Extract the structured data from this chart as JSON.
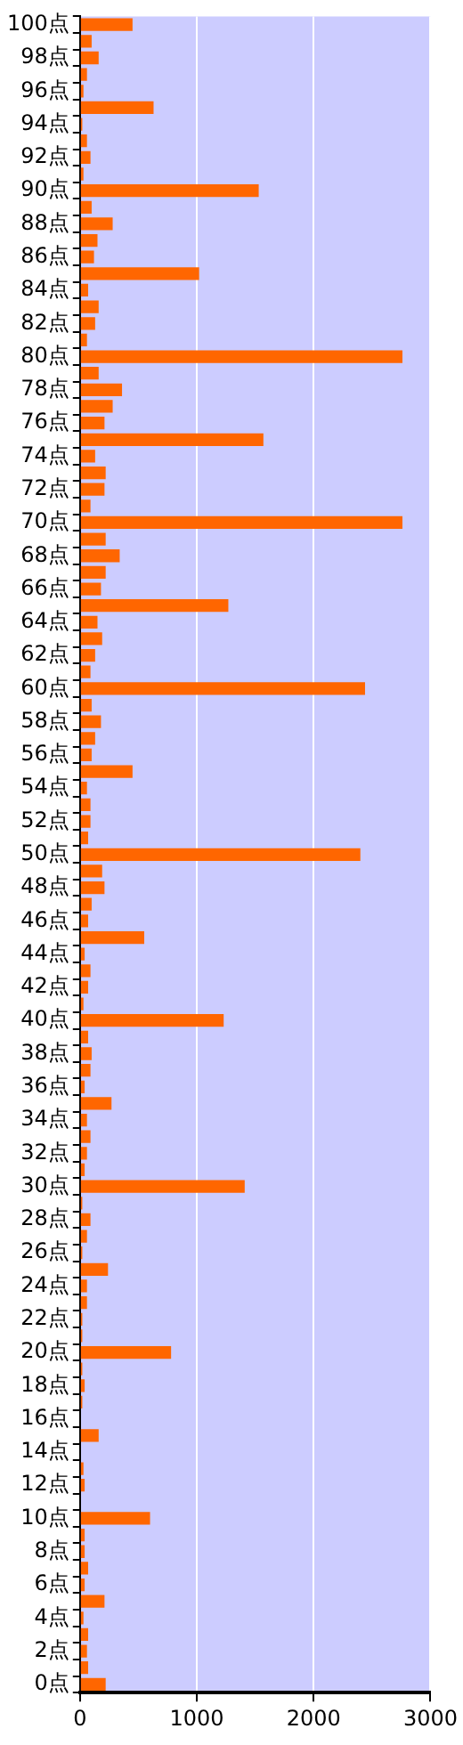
{
  "chart_data": {
    "type": "bar",
    "orientation": "horizontal",
    "categories": [
      "100点",
      null,
      "98点",
      null,
      "96点",
      null,
      "94点",
      null,
      "92点",
      null,
      "90点",
      null,
      "88点",
      null,
      "86点",
      null,
      "84点",
      null,
      "82点",
      null,
      "80点",
      null,
      "78点",
      null,
      "76点",
      null,
      "74点",
      null,
      "72点",
      null,
      "70点",
      null,
      "68点",
      null,
      "66点",
      null,
      "64点",
      null,
      "62点",
      null,
      "60点",
      null,
      "58点",
      null,
      "56点",
      null,
      "54点",
      null,
      "52点",
      null,
      "50点",
      null,
      "48点",
      null,
      "46点",
      null,
      "44点",
      null,
      "42点",
      null,
      "40点",
      null,
      "38点",
      null,
      "36点",
      null,
      "34点",
      null,
      "32点",
      null,
      "30点",
      null,
      "28点",
      null,
      "26点",
      null,
      "24点",
      null,
      "22点",
      null,
      "20点",
      null,
      "18点",
      null,
      "16点",
      null,
      "14点",
      null,
      "12点",
      null,
      "10点",
      null,
      "8点",
      null,
      "6点",
      null,
      "4点",
      null,
      "2点",
      null,
      "0点"
    ],
    "values": [
      450,
      100,
      160,
      60,
      30,
      630,
      20,
      60,
      90,
      30,
      1530,
      100,
      280,
      150,
      120,
      1020,
      70,
      160,
      130,
      60,
      2760,
      160,
      360,
      280,
      210,
      1570,
      130,
      220,
      210,
      90,
      2760,
      220,
      340,
      220,
      180,
      1270,
      150,
      190,
      130,
      90,
      2440,
      100,
      180,
      130,
      100,
      450,
      60,
      90,
      90,
      70,
      2400,
      190,
      210,
      100,
      70,
      550,
      40,
      90,
      70,
      30,
      1230,
      70,
      100,
      90,
      40,
      270,
      60,
      90,
      60,
      40,
      1410,
      20,
      90,
      60,
      20,
      240,
      60,
      60,
      20,
      20,
      780,
      20,
      40,
      20,
      0,
      160,
      0,
      30,
      40,
      0,
      600,
      40,
      40,
      70,
      40,
      210,
      30,
      70,
      60,
      70,
      220
    ],
    "color": "#ff6600",
    "xlim": [
      0,
      3000
    ],
    "xticks": [
      0,
      1000,
      2000,
      3000
    ],
    "grid": "x"
  }
}
